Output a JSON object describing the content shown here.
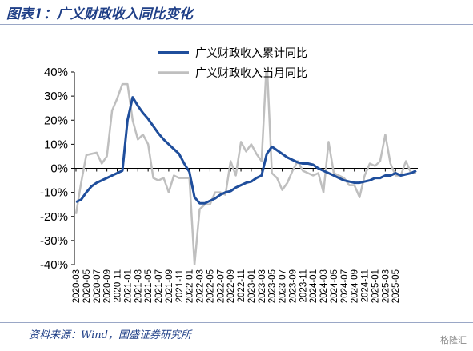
{
  "header": {
    "title": "图表1：广义财政收入同比变化"
  },
  "footer": {
    "source": "资料来源：Wind，国盛证券研究所",
    "watermark": "格隆汇"
  },
  "colors": {
    "cumulative": "#1f4e9c",
    "monthly": "#bfbfbf",
    "brand": "#1f3f87"
  },
  "chart_data": {
    "type": "line",
    "title": "图表1：广义财政收入同比变化",
    "xlabel": "",
    "ylabel": "",
    "ylim": [
      -40,
      40
    ],
    "yticks": [
      -40,
      -30,
      -20,
      -10,
      0,
      10,
      20,
      30,
      40
    ],
    "ytick_labels": [
      "-40%",
      "-30%",
      "-20%",
      "-10%",
      "0%",
      "10%",
      "20%",
      "30%",
      "40%"
    ],
    "xtick_labels": [
      "2020-03",
      "2020-05",
      "2020-07",
      "2020-09",
      "2020-11",
      "2021-01",
      "2021-03",
      "2021-05",
      "2021-07",
      "2021-09",
      "2021-11",
      "2022-01",
      "2022-03",
      "2022-05",
      "2022-07",
      "2022-09",
      "2022-11",
      "2023-01",
      "2023-03",
      "2023-05",
      "2023-07",
      "2023-09",
      "2023-11",
      "2024-01",
      "2024-03",
      "2024-05",
      "2024-07",
      "2024-09",
      "2024-11",
      "2025-01",
      "2025-03",
      "2025-05"
    ],
    "legend_position": "top-center",
    "grid": false,
    "start": "2020-03",
    "series": [
      {
        "name": "广义财政收入累计同比",
        "color": "#1f4e9c",
        "width": 3,
        "values": [
          -14,
          -13,
          -10,
          -7.5,
          -6,
          -5,
          -4,
          -3,
          -2,
          -1,
          20,
          29.5,
          26,
          23,
          20.5,
          17.5,
          14.5,
          12,
          10,
          8,
          6,
          2,
          -1.5,
          -12,
          -14.5,
          -14.5,
          -13.5,
          -12.5,
          -11,
          -10,
          -9.5,
          -8,
          -7,
          -6,
          -5.5,
          -4,
          -3,
          6,
          9,
          7.5,
          6,
          4.5,
          3.5,
          2.5,
          2,
          2,
          1.5,
          0,
          -1,
          -2,
          -3,
          -4,
          -5,
          -5.5,
          -6,
          -6,
          -5.5,
          -5,
          -4,
          -4,
          -3,
          -3,
          -2,
          -3,
          -2.5,
          -2,
          -1
        ]
      },
      {
        "name": "广义财政收入当月同比",
        "color": "#bfbfbf",
        "width": 2.5,
        "values": [
          -19,
          -6,
          5.5,
          6,
          6.5,
          2,
          5,
          24,
          29,
          35,
          35,
          20,
          12,
          14,
          10,
          -4,
          -5,
          -4,
          -10,
          -3,
          -4,
          -4,
          -4,
          -40,
          -17,
          -15,
          -15,
          -10,
          -10,
          -11,
          3,
          -3,
          11,
          7,
          10,
          6,
          3,
          45,
          -2,
          -4,
          -9,
          -6,
          -1,
          3,
          -1,
          -2,
          -3,
          -2,
          -10,
          11,
          -2,
          -3,
          -4,
          -7,
          -7,
          -12,
          -3,
          2,
          1,
          3,
          14,
          2,
          -3,
          -3,
          3,
          -2,
          -2
        ]
      }
    ]
  }
}
